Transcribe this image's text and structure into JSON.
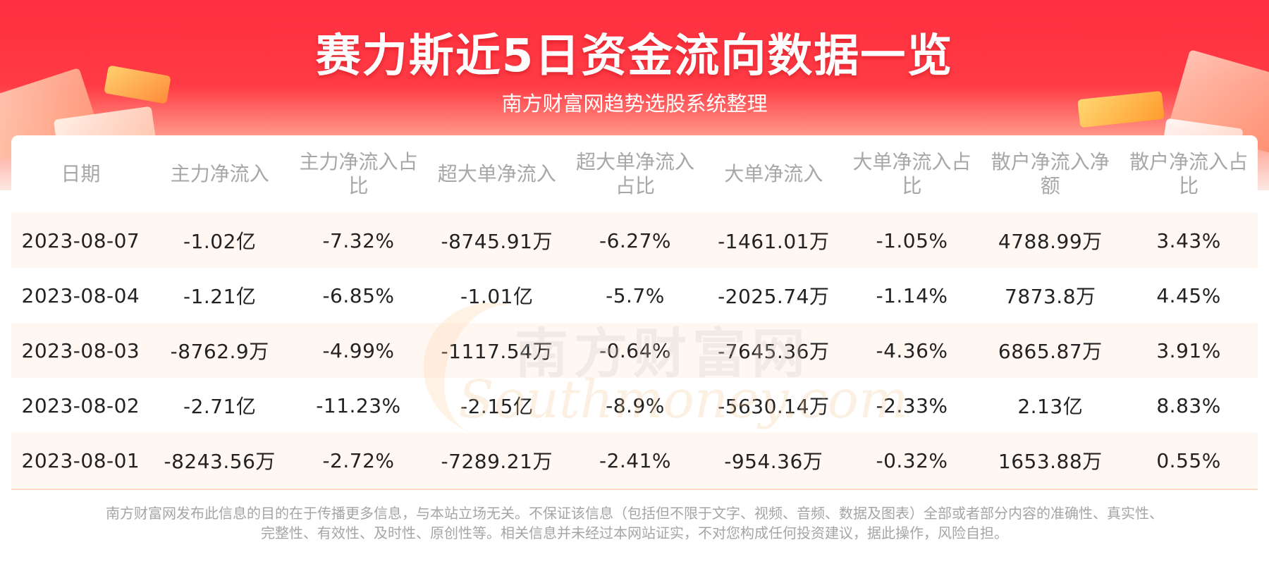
{
  "header": {
    "title": "赛力斯近5日资金流向数据一览",
    "subtitle": "南方财富网趋势选股系统整理"
  },
  "watermark": {
    "cn": "南方财富网",
    "en": "Southmoney.com"
  },
  "table": {
    "columns": [
      "日期",
      "主力净流入",
      "主力净流入占比",
      "超大单净流入",
      "超大单净流入占比",
      "大单净流入",
      "大单净流入占比",
      "散户净流入净额",
      "散户净流入占比"
    ],
    "rows": [
      [
        "2023-08-07",
        "-1.02亿",
        "-7.32%",
        "-8745.91万",
        "-6.27%",
        "-1461.01万",
        "-1.05%",
        "4788.99万",
        "3.43%"
      ],
      [
        "2023-08-04",
        "-1.21亿",
        "-6.85%",
        "-1.01亿",
        "-5.7%",
        "-2025.74万",
        "-1.14%",
        "7873.8万",
        "4.45%"
      ],
      [
        "2023-08-03",
        "-8762.9万",
        "-4.99%",
        "-1117.54万",
        "-0.64%",
        "-7645.36万",
        "-4.36%",
        "6865.87万",
        "3.91%"
      ],
      [
        "2023-08-02",
        "-2.71亿",
        "-11.23%",
        "-2.15亿",
        "-8.9%",
        "-5630.14万",
        "-2.33%",
        "2.13亿",
        "8.83%"
      ],
      [
        "2023-08-01",
        "-8243.56万",
        "-2.72%",
        "-7289.21万",
        "-2.41%",
        "-954.36万",
        "-0.32%",
        "1653.88万",
        "0.55%"
      ]
    ]
  },
  "footer": {
    "line1": "南方财富网发布此信息的目的在于传播更多信息，与本站立场无关。不保证该信息（包括但不限于文字、视频、音频、数据及图表）全部或者部分内容的准确性、真实性、",
    "line2": "完整性、有效性、及时性、原创性等。相关信息并未经过本网站证实，不对您构成任何投资建议，据此操作，风险自担。"
  },
  "colors": {
    "header_red": "#ff2f3f",
    "row_tint": "#fff7f2",
    "header_text": "#a7a7a7"
  }
}
